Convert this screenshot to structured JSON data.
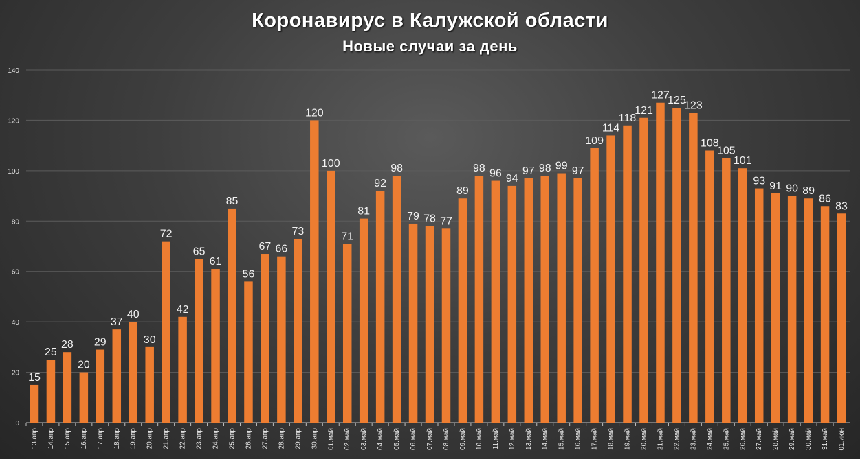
{
  "chart_data": {
    "type": "bar",
    "title": "Коронавирус в Калужской области",
    "subtitle": "Новые случаи за день",
    "xlabel": "",
    "ylabel": "",
    "ylim": [
      0,
      140
    ],
    "yticks": [
      0,
      20,
      40,
      60,
      80,
      100,
      120,
      140
    ],
    "grid": true,
    "bar_color": "#ED7D31",
    "categories": [
      "13.апр",
      "14.апр",
      "15.апр",
      "16.апр",
      "17.апр",
      "18.апр",
      "19.апр",
      "20.апр",
      "21.апр",
      "22.апр",
      "23.апр",
      "24.апр",
      "25.апр",
      "26.апр",
      "27.апр",
      "28.апр",
      "29.апр",
      "30.апр",
      "01.май",
      "02.май",
      "03.май",
      "04.май",
      "05.май",
      "06.май",
      "07.май",
      "08.май",
      "09.май",
      "10.май",
      "11.май",
      "12.май",
      "13.май",
      "14.май",
      "15.май",
      "16.май",
      "17.май",
      "18.май",
      "19.май",
      "20.май",
      "21.май",
      "22.май",
      "23.май",
      "24.май",
      "25.май",
      "26.май",
      "27.май",
      "28.май",
      "29.май",
      "30.май",
      "31.май",
      "01.июн"
    ],
    "values": [
      15,
      25,
      28,
      20,
      29,
      37,
      40,
      30,
      72,
      42,
      65,
      61,
      85,
      56,
      67,
      66,
      73,
      120,
      100,
      71,
      81,
      92,
      98,
      79,
      78,
      77,
      89,
      98,
      96,
      94,
      97,
      98,
      99,
      97,
      109,
      114,
      118,
      121,
      127,
      125,
      123,
      108,
      105,
      101,
      93,
      91,
      90,
      89,
      86,
      83
    ]
  }
}
